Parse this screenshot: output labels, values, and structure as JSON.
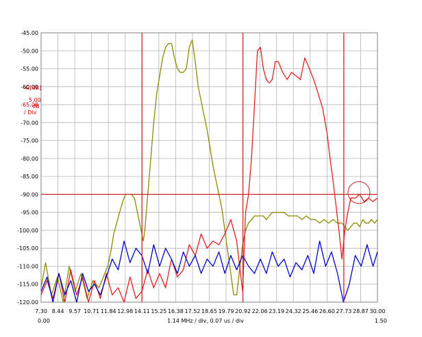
{
  "chart_data": {
    "type": "line",
    "title": "",
    "y_axis": {
      "label": "-G[dB]",
      "scale_value": "5.00",
      "scale_unit": "dB",
      "scale_suffix": "/ Div",
      "range": [
        -120,
        -45
      ],
      "ticks": [
        "-45.00",
        "-50.00",
        "-55.00",
        "-60.00",
        "-65.00",
        "-70.00",
        "-75.00",
        "-80.00",
        "-85.00",
        "-90.00",
        "-95.00",
        "-100.00",
        "-105.00",
        "-110.00",
        "-115.00",
        "-120.00"
      ]
    },
    "x_axis": {
      "range_mhz": [
        7.3,
        30.0
      ],
      "ticks_mhz": [
        "7.30",
        "8.44",
        "9.57",
        "10.71",
        "11.84",
        "12.98",
        "14.11",
        "15.25",
        "16.38",
        "17.52",
        "18.65",
        "19.79",
        "20.92",
        "22.06",
        "23.19",
        "24.32",
        "25.46",
        "26.60",
        "27.73",
        "28.87",
        "30.00"
      ],
      "time_start": "0.00",
      "time_end": "1.50",
      "caption": "1.14 MHz / div, 0.07 us / div"
    },
    "markers": {
      "vertical_mhz": [
        14.11,
        20.92,
        27.73
      ],
      "horizontal_db": -90,
      "circle": {
        "x_mhz": 28.75,
        "y_db": -89.5
      }
    },
    "colors": {
      "olive": "#8c8a00",
      "red": "#e02020",
      "blue": "#0000cc",
      "marker": "#cc2222",
      "grid": "#b4b4b4"
    },
    "series": [
      {
        "name": "olive",
        "color": "#8c8a00",
        "x": [
          7.3,
          7.6,
          8.0,
          8.4,
          8.8,
          9.2,
          9.6,
          10.0,
          10.4,
          10.8,
          11.2,
          11.6,
          11.8,
          12.0,
          12.2,
          12.4,
          12.6,
          12.8,
          13.0,
          13.2,
          13.4,
          13.6,
          13.7,
          13.8,
          13.9,
          14.0,
          14.1,
          14.2,
          14.3,
          14.5,
          14.7,
          14.9,
          15.1,
          15.3,
          15.5,
          15.7,
          15.9,
          16.1,
          16.3,
          16.5,
          16.7,
          16.9,
          17.1,
          17.3,
          17.5,
          17.7,
          17.9,
          18.1,
          18.3,
          18.5,
          18.7,
          18.9,
          19.1,
          19.3,
          19.5,
          19.7,
          19.9,
          20.1,
          20.3,
          20.5,
          20.7,
          20.9,
          21.1,
          21.3,
          21.5,
          21.7,
          21.9,
          22.1,
          22.3,
          22.5,
          22.7,
          22.9,
          23.1,
          23.3,
          23.5,
          23.7,
          24.0,
          24.3,
          24.6,
          24.9,
          25.2,
          25.5,
          25.8,
          26.1,
          26.4,
          26.7,
          27.0,
          27.3,
          27.6,
          27.8,
          28.0,
          28.2,
          28.4,
          28.6,
          28.8,
          29.0,
          29.2,
          29.4,
          29.6,
          29.8,
          30.0
        ],
        "y": [
          -116,
          -109,
          -118,
          -113,
          -120,
          -110,
          -117,
          -112,
          -119,
          -114,
          -116,
          -112,
          -110,
          -106,
          -101,
          -98,
          -95,
          -92,
          -90,
          -90,
          -90,
          -91,
          -93,
          -95,
          -97,
          -99,
          -101,
          -103,
          -100,
          -90,
          -80,
          -70,
          -62,
          -57,
          -52,
          -49,
          -48,
          -48,
          -52,
          -55,
          -56,
          -56,
          -55,
          -49,
          -47,
          -53,
          -60,
          -64,
          -68,
          -72,
          -77,
          -82,
          -86,
          -90,
          -94,
          -100,
          -106,
          -112,
          -118,
          -118,
          -111,
          -104,
          -100,
          -98,
          -97,
          -96,
          -96,
          -96,
          -96,
          -97,
          -96,
          -95,
          -95,
          -95,
          -95,
          -95,
          -96,
          -96,
          -96,
          -97,
          -96,
          -97,
          -97,
          -98,
          -97,
          -98,
          -97,
          -98,
          -98,
          -99,
          -100,
          -99,
          -98,
          -98,
          -99,
          -97,
          -98,
          -98,
          -97,
          -98,
          -97
        ]
      },
      {
        "name": "red",
        "color": "#e02020",
        "x": [
          7.3,
          7.7,
          8.1,
          8.5,
          8.9,
          9.3,
          9.7,
          10.1,
          10.5,
          10.9,
          11.3,
          11.7,
          12.1,
          12.5,
          12.9,
          13.3,
          13.7,
          14.1,
          14.5,
          14.9,
          15.3,
          15.7,
          16.1,
          16.5,
          16.9,
          17.3,
          17.7,
          18.1,
          18.5,
          18.9,
          19.3,
          19.7,
          20.1,
          20.5,
          20.9,
          21.1,
          21.3,
          21.5,
          21.7,
          21.9,
          22.1,
          22.3,
          22.5,
          22.7,
          22.9,
          23.1,
          23.3,
          23.6,
          23.9,
          24.2,
          24.5,
          24.8,
          25.1,
          25.4,
          25.7,
          26.0,
          26.3,
          26.6,
          26.8,
          27.0,
          27.2,
          27.4,
          27.6,
          27.8,
          28.0,
          28.2,
          28.5,
          28.8,
          29.1,
          29.4,
          29.7,
          30.0
        ],
        "y": [
          -118,
          -114,
          -119,
          -112,
          -120,
          -111,
          -118,
          -113,
          -120,
          -114,
          -119,
          -112,
          -118,
          -116,
          -120,
          -113,
          -119,
          -117,
          -111,
          -116,
          -112,
          -116,
          -108,
          -113,
          -111,
          -104,
          -107,
          -101,
          -105,
          -103,
          -104,
          -101,
          -97,
          -103,
          -117,
          -95,
          -90,
          -80,
          -65,
          -50,
          -49,
          -55,
          -58,
          -59,
          -58,
          -53,
          -53,
          -56,
          -58,
          -56,
          -57,
          -58,
          -52,
          -55,
          -58,
          -62,
          -66,
          -73,
          -80,
          -86,
          -93,
          -100,
          -108,
          -100,
          -95,
          -91,
          -91,
          -90,
          -92,
          -91,
          -92,
          -91
        ]
      },
      {
        "name": "blue",
        "color": "#0000cc",
        "x": [
          7.3,
          7.7,
          8.1,
          8.5,
          8.9,
          9.3,
          9.7,
          10.1,
          10.5,
          10.9,
          11.3,
          11.7,
          12.1,
          12.5,
          12.9,
          13.3,
          13.7,
          14.1,
          14.5,
          14.9,
          15.3,
          15.7,
          16.1,
          16.5,
          16.9,
          17.3,
          17.7,
          18.1,
          18.5,
          18.9,
          19.3,
          19.7,
          20.1,
          20.5,
          20.9,
          21.3,
          21.7,
          22.1,
          22.5,
          22.9,
          23.3,
          23.7,
          24.1,
          24.5,
          24.9,
          25.3,
          25.7,
          26.1,
          26.5,
          26.9,
          27.3,
          27.7,
          28.1,
          28.5,
          28.9,
          29.3,
          29.7,
          30.0
        ],
        "y": [
          -117,
          -113,
          -120,
          -112,
          -118,
          -114,
          -120,
          -112,
          -117,
          -115,
          -118,
          -113,
          -108,
          -111,
          -103,
          -109,
          -105,
          -107,
          -112,
          -104,
          -110,
          -105,
          -108,
          -112,
          -106,
          -110,
          -107,
          -112,
          -108,
          -110,
          -106,
          -112,
          -107,
          -111,
          -107,
          -110,
          -112,
          -108,
          -112,
          -106,
          -110,
          -108,
          -113,
          -109,
          -111,
          -107,
          -112,
          -103,
          -110,
          -106,
          -112,
          -120,
          -115,
          -107,
          -110,
          -104,
          -110,
          -106
        ]
      }
    ]
  }
}
